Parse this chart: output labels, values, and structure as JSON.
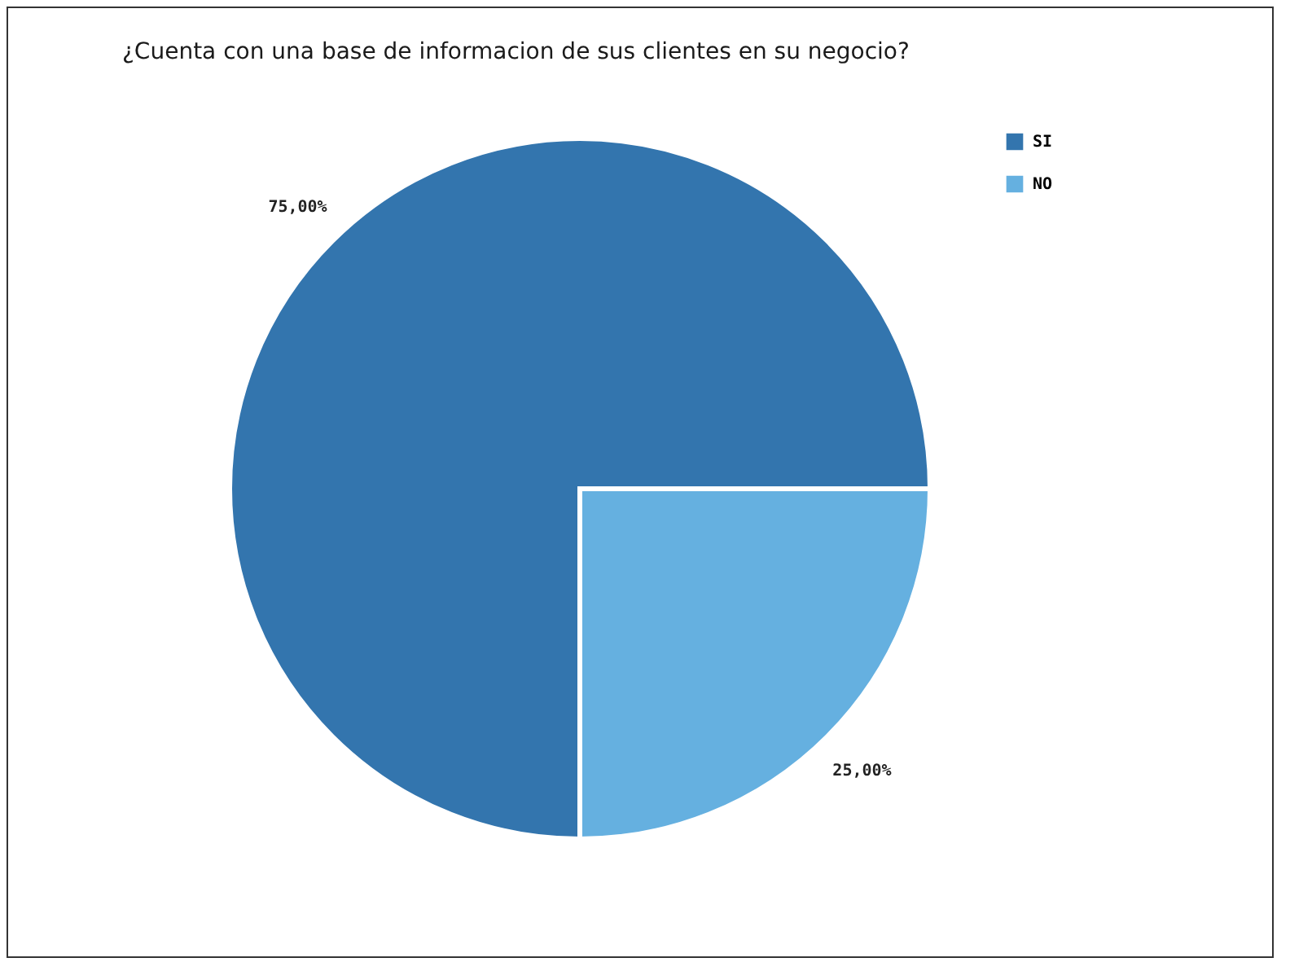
{
  "chart_data": {
    "type": "pie",
    "title": "¿Cuenta con una base de informacion de sus clientes en su negocio?",
    "categories": [
      "SI",
      "NO"
    ],
    "values": [
      75,
      25
    ],
    "colors": [
      "#3375ae",
      "#65b0e0"
    ],
    "value_labels": [
      "75,00%",
      "25,00%"
    ],
    "legend": "right"
  }
}
